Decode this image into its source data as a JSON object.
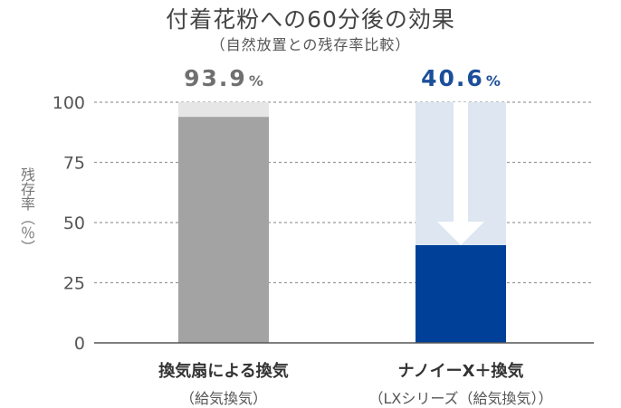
{
  "chart_data": {
    "type": "bar",
    "title": "付着花粉への60分後の効果",
    "subtitle": "（自然放置との残存率比較）",
    "ylabel": "残存率（％）",
    "ylim": [
      0,
      100
    ],
    "yticks": [
      "0",
      "25",
      "50",
      "75",
      "100"
    ],
    "grid": true,
    "categories": [
      {
        "name": "換気扇による換気",
        "sub": "（給気換気）"
      },
      {
        "name": "ナノイーX＋換気",
        "sub": "（LXシリーズ（給気換気））"
      }
    ],
    "values": [
      93.9,
      40.6
    ],
    "value_labels": [
      "93.9",
      "40.6"
    ],
    "unit": "%",
    "reference_value": 100,
    "colors": {
      "bar1": "#a3a3a3",
      "bar1_reference": "#e6e6e6",
      "bar2": "#004098",
      "bar2_reference": "#dde6f1",
      "arrow": "#ffffff",
      "value1": "#707070",
      "value2": "#1c4e9a",
      "grid": "#9a9a9a",
      "axis": "#555555"
    }
  }
}
